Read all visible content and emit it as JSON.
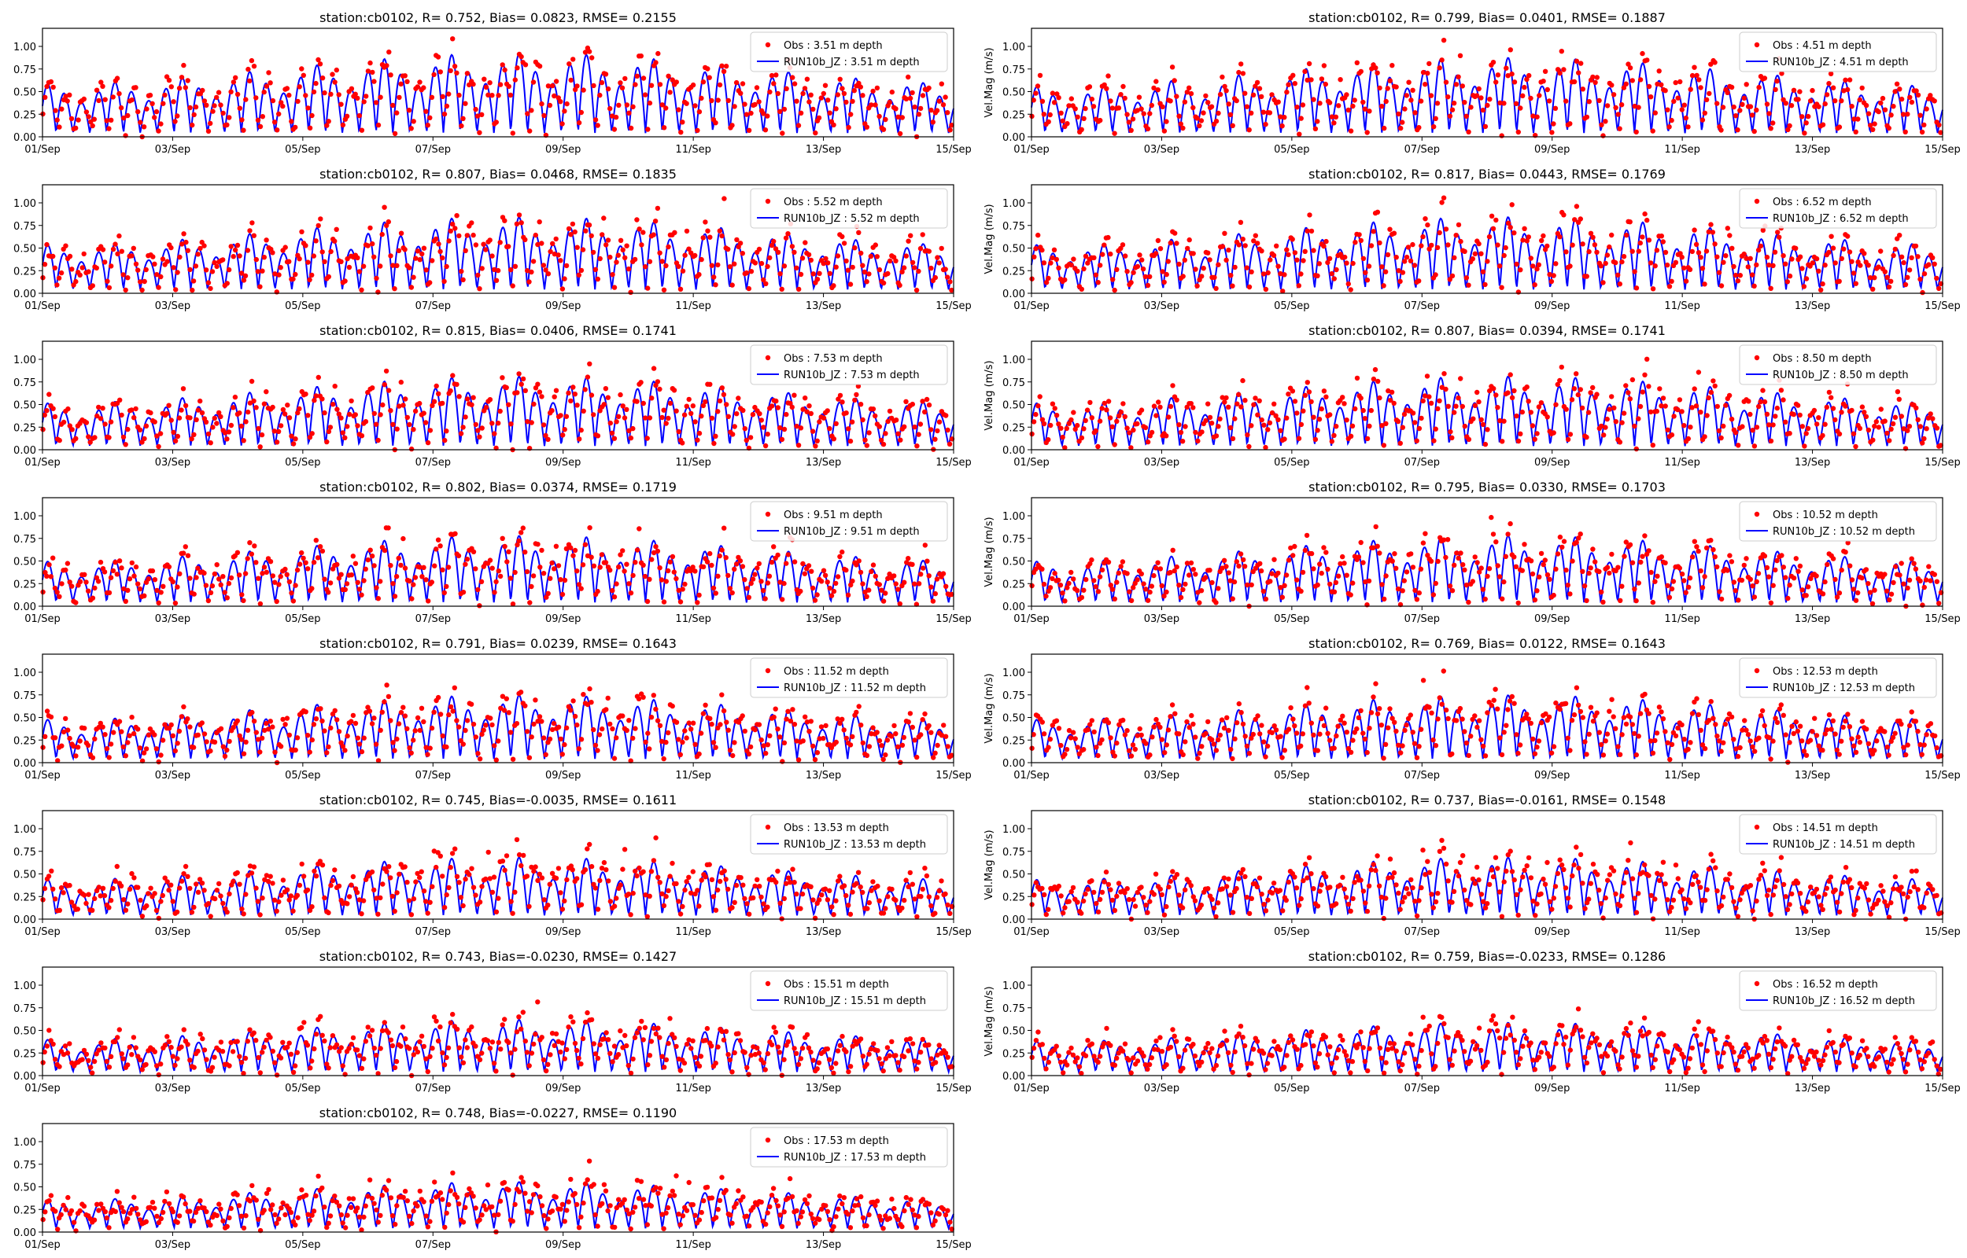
{
  "figure": {
    "shared_axes": {
      "xlim": [
        "2023-09-01",
        "2023-09-15"
      ],
      "xtick_labels": [
        "01/Sep",
        "03/Sep",
        "05/Sep",
        "07/Sep",
        "09/Sep",
        "11/Sep",
        "13/Sep",
        "15/Sep"
      ],
      "ylim": [
        0,
        1.2
      ],
      "ytick_labels": [
        "0.00",
        "0.25",
        "0.50",
        "0.75",
        "1.00"
      ],
      "ylabel_right_column": "Vel.Mag (m/s)"
    },
    "colors": {
      "obs": "#ff0000",
      "model": "#0000ff"
    }
  },
  "chart_data": [
    {
      "type": "line",
      "title": "station:cb0102, R= 0.752, Bias= 0.0823, RMSE= 0.2155",
      "ylabel": "",
      "series": [
        {
          "name": "Obs : 3.51 m depth",
          "style": "points"
        },
        {
          "name": "RUN10b_JZ : 3.51 m depth",
          "style": "line"
        }
      ],
      "stats": {
        "R": 0.752,
        "Bias": 0.0823,
        "RMSE": 0.2155
      },
      "amp": 0.55
    },
    {
      "type": "line",
      "title": "station:cb0102, R= 0.799, Bias= 0.0401, RMSE= 0.1887",
      "ylabel": "Vel.Mag (m/s)",
      "series": [
        {
          "name": "Obs : 4.51 m depth",
          "style": "points"
        },
        {
          "name": "RUN10b_JZ : 4.51 m depth",
          "style": "line"
        }
      ],
      "stats": {
        "R": 0.799,
        "Bias": 0.0401,
        "RMSE": 0.1887
      },
      "amp": 0.52
    },
    {
      "type": "line",
      "title": "station:cb0102, R= 0.807, Bias= 0.0468, RMSE= 0.1835",
      "ylabel": "",
      "series": [
        {
          "name": "Obs : 5.52 m depth",
          "style": "points"
        },
        {
          "name": "RUN10b_JZ : 5.52 m depth",
          "style": "line"
        }
      ],
      "stats": {
        "R": 0.807,
        "Bias": 0.0468,
        "RMSE": 0.1835
      },
      "amp": 0.5
    },
    {
      "type": "line",
      "title": "station:cb0102, R= 0.817, Bias= 0.0443, RMSE= 0.1769",
      "ylabel": "Vel.Mag (m/s)",
      "series": [
        {
          "name": "Obs : 6.52 m depth",
          "style": "points"
        },
        {
          "name": "RUN10b_JZ : 6.52 m depth",
          "style": "line"
        }
      ],
      "stats": {
        "R": 0.817,
        "Bias": 0.0443,
        "RMSE": 0.1769
      },
      "amp": 0.5
    },
    {
      "type": "line",
      "title": "station:cb0102, R= 0.815, Bias= 0.0406, RMSE= 0.1741",
      "ylabel": "",
      "series": [
        {
          "name": "Obs : 7.53 m depth",
          "style": "points"
        },
        {
          "name": "RUN10b_JZ : 7.53 m depth",
          "style": "line"
        }
      ],
      "stats": {
        "R": 0.815,
        "Bias": 0.0406,
        "RMSE": 0.1741
      },
      "amp": 0.48
    },
    {
      "type": "line",
      "title": "station:cb0102, R= 0.807, Bias= 0.0394, RMSE= 0.1741",
      "ylabel": "Vel.Mag (m/s)",
      "series": [
        {
          "name": "Obs : 8.50 m depth",
          "style": "points"
        },
        {
          "name": "RUN10b_JZ : 8.50 m depth",
          "style": "line"
        }
      ],
      "stats": {
        "R": 0.807,
        "Bias": 0.0394,
        "RMSE": 0.1741
      },
      "amp": 0.48
    },
    {
      "type": "line",
      "title": "station:cb0102, R= 0.802, Bias= 0.0374, RMSE= 0.1719",
      "ylabel": "",
      "series": [
        {
          "name": "Obs : 9.51 m depth",
          "style": "points"
        },
        {
          "name": "RUN10b_JZ : 9.51 m depth",
          "style": "line"
        }
      ],
      "stats": {
        "R": 0.802,
        "Bias": 0.0374,
        "RMSE": 0.1719
      },
      "amp": 0.46
    },
    {
      "type": "line",
      "title": "station:cb0102, R= 0.795, Bias= 0.0330, RMSE= 0.1703",
      "ylabel": "Vel.Mag (m/s)",
      "series": [
        {
          "name": "Obs : 10.52 m depth",
          "style": "points"
        },
        {
          "name": "RUN10b_JZ : 10.52 m depth",
          "style": "line"
        }
      ],
      "stats": {
        "R": 0.795,
        "Bias": 0.033,
        "RMSE": 0.1703
      },
      "amp": 0.46
    },
    {
      "type": "line",
      "title": "station:cb0102, R= 0.791, Bias= 0.0239, RMSE= 0.1643",
      "ylabel": "",
      "series": [
        {
          "name": "Obs : 11.52 m depth",
          "style": "points"
        },
        {
          "name": "RUN10b_JZ : 11.52 m depth",
          "style": "line"
        }
      ],
      "stats": {
        "R": 0.791,
        "Bias": 0.0239,
        "RMSE": 0.1643
      },
      "amp": 0.44
    },
    {
      "type": "line",
      "title": "station:cb0102, R= 0.769, Bias= 0.0122, RMSE= 0.1643",
      "ylabel": "Vel.Mag (m/s)",
      "series": [
        {
          "name": "Obs : 12.53 m depth",
          "style": "points"
        },
        {
          "name": "RUN10b_JZ : 12.53 m depth",
          "style": "line"
        }
      ],
      "stats": {
        "R": 0.769,
        "Bias": 0.0122,
        "RMSE": 0.1643
      },
      "amp": 0.44
    },
    {
      "type": "line",
      "title": "station:cb0102, R= 0.745, Bias=-0.0035, RMSE= 0.1611",
      "ylabel": "",
      "series": [
        {
          "name": "Obs : 13.53 m depth",
          "style": "points"
        },
        {
          "name": "RUN10b_JZ : 13.53 m depth",
          "style": "line"
        }
      ],
      "stats": {
        "R": 0.745,
        "Bias": -0.0035,
        "RMSE": 0.1611
      },
      "amp": 0.4
    },
    {
      "type": "line",
      "title": "station:cb0102, R= 0.737, Bias=-0.0161, RMSE= 0.1548",
      "ylabel": "Vel.Mag (m/s)",
      "series": [
        {
          "name": "Obs : 14.51 m depth",
          "style": "points"
        },
        {
          "name": "RUN10b_JZ : 14.51 m depth",
          "style": "line"
        }
      ],
      "stats": {
        "R": 0.737,
        "Bias": -0.0161,
        "RMSE": 0.1548
      },
      "amp": 0.4
    },
    {
      "type": "line",
      "title": "station:cb0102, R= 0.743, Bias=-0.0230, RMSE= 0.1427",
      "ylabel": "",
      "series": [
        {
          "name": "Obs : 15.51 m depth",
          "style": "points"
        },
        {
          "name": "RUN10b_JZ : 15.51 m depth",
          "style": "line"
        }
      ],
      "stats": {
        "R": 0.743,
        "Bias": -0.023,
        "RMSE": 0.1427
      },
      "amp": 0.36
    },
    {
      "type": "line",
      "title": "station:cb0102, R= 0.759, Bias=-0.0233, RMSE= 0.1286",
      "ylabel": "Vel.Mag (m/s)",
      "series": [
        {
          "name": "Obs : 16.52 m depth",
          "style": "points"
        },
        {
          "name": "RUN10b_JZ : 16.52 m depth",
          "style": "line"
        }
      ],
      "stats": {
        "R": 0.759,
        "Bias": -0.0233,
        "RMSE": 0.1286
      },
      "amp": 0.34
    },
    {
      "type": "line",
      "title": "station:cb0102, R= 0.748, Bias=-0.0227, RMSE= 0.1190",
      "ylabel": "",
      "series": [
        {
          "name": "Obs : 17.53 m depth",
          "style": "points"
        },
        {
          "name": "RUN10b_JZ : 17.53 m depth",
          "style": "line"
        }
      ],
      "stats": {
        "R": 0.748,
        "Bias": -0.0227,
        "RMSE": 0.119
      },
      "amp": 0.32
    }
  ]
}
